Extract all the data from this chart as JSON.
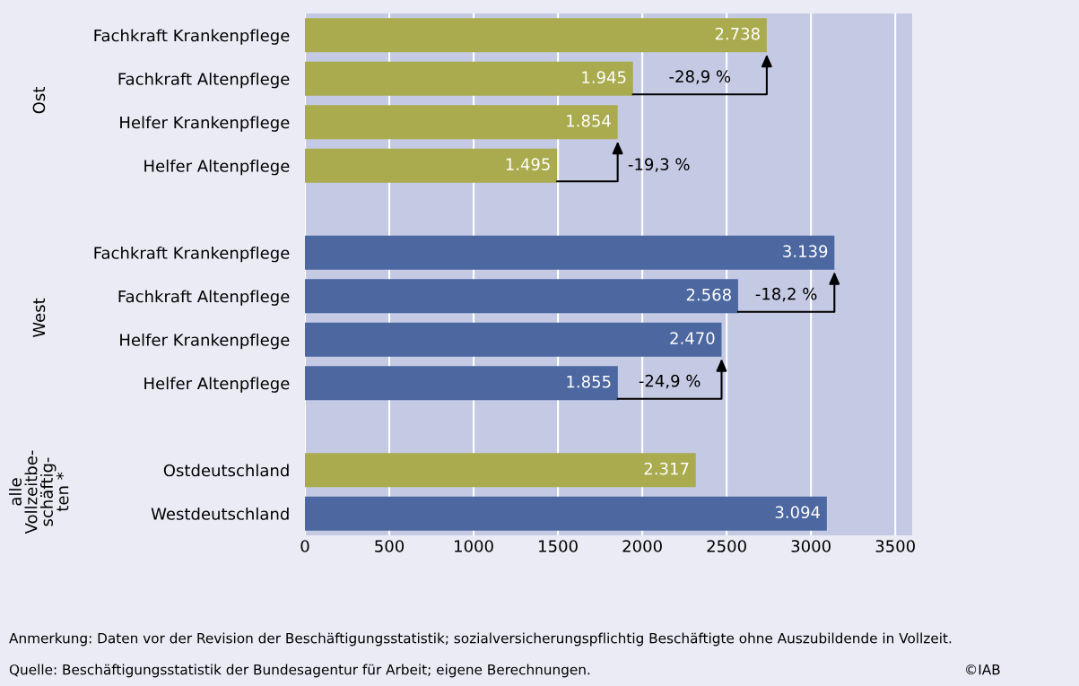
{
  "chart_data": {
    "type": "bar",
    "orientation": "horizontal",
    "categories": [
      "Fachkraft Krankenpflege",
      "Fachkraft Altenpflege",
      "Helfer Krankenpflege",
      "Helfer Altenpflege",
      null,
      "Fachkraft Krankenpflege",
      "Fachkraft Altenpflege",
      "Helfer Krankenpflege",
      "Helfer Altenpflege",
      null,
      "Ostdeutschland",
      "Westdeutschland"
    ],
    "values": [
      2738,
      1945,
      1854,
      1495,
      null,
      3139,
      2568,
      2470,
      1855,
      null,
      2317,
      3094
    ],
    "colors": [
      "#a9ab4e",
      "#a9ab4e",
      "#a9ab4e",
      "#a9ab4e",
      null,
      "#4d67a0",
      "#4d67a0",
      "#4d67a0",
      "#4d67a0",
      null,
      "#a9ab4e",
      "#4d67a0"
    ],
    "value_labels": [
      "2.738",
      "1.945",
      "1.854",
      "1.495",
      null,
      "3.139",
      "2.568",
      "2.470",
      "1.855",
      null,
      "2.317",
      "3.094"
    ],
    "xlim": [
      0,
      3600
    ],
    "xticks": [
      0,
      500,
      1000,
      1500,
      2000,
      2500,
      3000,
      3500
    ],
    "grid": "x",
    "annotations": [
      "Ost",
      "West",
      "alle\nVollzeitbe-\nschäftig-\nten *",
      "-28,9 %",
      "-19,3 %",
      "-18,2 %",
      "-24,9 %",
      "Anmerkung: Daten vor der Revision der Beschäftigungsstatistik; sozialversicherungspflichtig Beschäftigte ohne Auszubildende in Vollzeit.",
      "Quelle: Beschäftigungsstatistik der Bundesagentur für Arbeit; eigene Berechnungen.",
      "©IAB"
    ]
  }
}
